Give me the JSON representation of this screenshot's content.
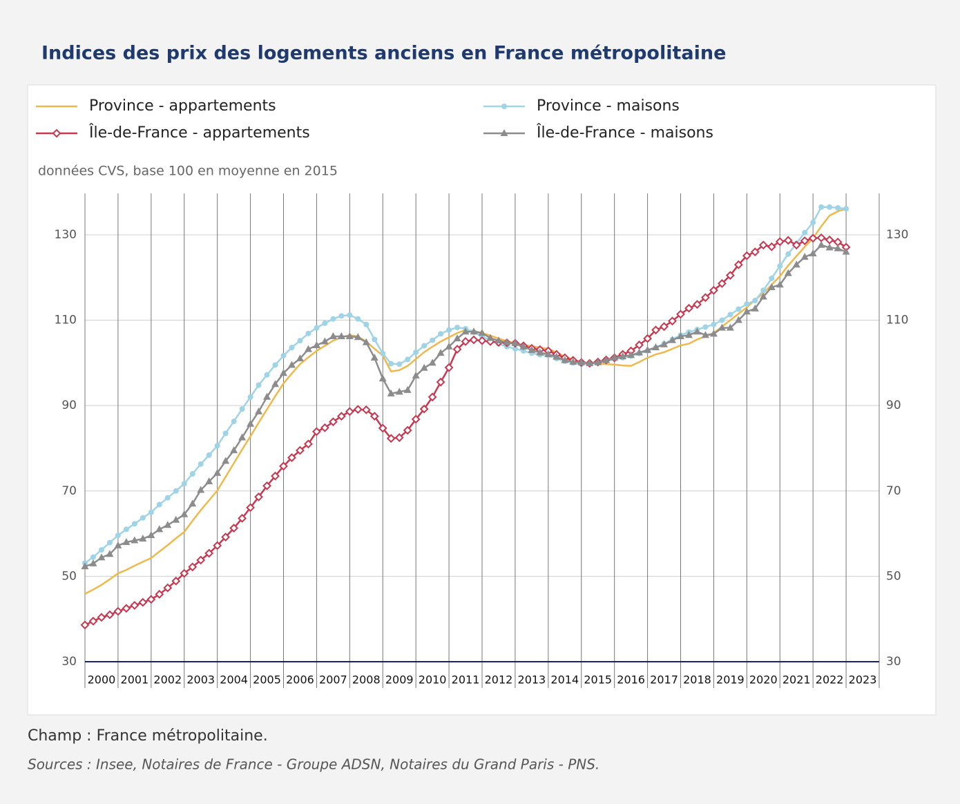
{
  "chart_data": {
    "type": "line",
    "title": "Indices des prix des logements anciens en France métropolitaine",
    "subtitle": "données CVS, base 100 en moyenne en 2015",
    "notes": [
      "Champ : France métropolitaine.",
      "Sources : Insee, Notaires de France - Groupe ADSN, Notaires du Grand Paris - PNS."
    ],
    "legend": "top",
    "grid": true,
    "xlim": [
      2000,
      2024
    ],
    "xticks": [
      2000,
      2001,
      2002,
      2003,
      2004,
      2005,
      2006,
      2007,
      2008,
      2009,
      2010,
      2011,
      2012,
      2013,
      2014,
      2015,
      2016,
      2017,
      2018,
      2019,
      2020,
      2021,
      2022,
      2023
    ],
    "ylim": [
      30,
      139.7
    ],
    "yticks": [
      30,
      50,
      70,
      90,
      110,
      130
    ],
    "y2lim": [
      30,
      139.7
    ],
    "y2ticks": [
      30,
      50,
      70,
      90,
      110,
      130
    ],
    "x": [
      2000,
      2000.25,
      2000.5,
      2000.75,
      2001,
      2001.25,
      2001.5,
      2001.75,
      2002,
      2002.25,
      2002.5,
      2002.75,
      2003,
      2003.25,
      2003.5,
      2003.75,
      2004,
      2004.25,
      2004.5,
      2004.75,
      2005,
      2005.25,
      2005.5,
      2005.75,
      2006,
      2006.25,
      2006.5,
      2006.75,
      2007,
      2007.25,
      2007.5,
      2007.75,
      2008,
      2008.25,
      2008.5,
      2008.75,
      2009,
      2009.25,
      2009.5,
      2009.75,
      2010,
      2010.25,
      2010.5,
      2010.75,
      2011,
      2011.25,
      2011.5,
      2011.75,
      2012,
      2012.25,
      2012.5,
      2012.75,
      2013,
      2013.25,
      2013.5,
      2013.75,
      2014,
      2014.25,
      2014.5,
      2014.75,
      2015,
      2015.25,
      2015.5,
      2015.75,
      2016,
      2016.25,
      2016.5,
      2016.75,
      2017,
      2017.25,
      2017.5,
      2017.75,
      2018,
      2018.25,
      2018.5,
      2018.75,
      2019,
      2019.25,
      2019.5,
      2019.75,
      2020,
      2020.25,
      2020.5,
      2020.75,
      2021,
      2021.25,
      2021.5,
      2021.75,
      2022,
      2022.25,
      2022.5,
      2022.75,
      2023
    ],
    "series": [
      {
        "name": "Province - appartements",
        "color": "#f0b84a",
        "marker": "none",
        "values": [
          45.9,
          46.9,
          48.0,
          49.3,
          50.7,
          51.5,
          52.5,
          53.4,
          54.3,
          55.8,
          57.3,
          58.9,
          60.4,
          63.0,
          65.5,
          67.8,
          70.1,
          73.3,
          76.5,
          79.7,
          82.8,
          86.0,
          89.1,
          92.2,
          95.2,
          97.5,
          99.7,
          101.3,
          102.8,
          104.0,
          105.2,
          106.0,
          106.5,
          106.2,
          105.0,
          103.3,
          101.7,
          98.0,
          98.3,
          99.3,
          100.9,
          102.5,
          103.8,
          105.0,
          106.0,
          107.0,
          107.7,
          107.5,
          107.0,
          106.4,
          105.7,
          105.1,
          104.6,
          104.2,
          103.9,
          103.6,
          103.3,
          102.4,
          101.5,
          100.8,
          100.2,
          100.0,
          99.8,
          99.7,
          99.6,
          99.4,
          99.3,
          100.2,
          101.2,
          102.0,
          102.5,
          103.3,
          104.1,
          104.5,
          105.5,
          106.2,
          107.0,
          108.5,
          110.0,
          111.5,
          113.0,
          114.8,
          116.3,
          118.3,
          120.3,
          122.8,
          125.0,
          127.2,
          129.2,
          132.0,
          134.5,
          135.5,
          136.1
        ]
      },
      {
        "name": "Province - maisons",
        "color": "#9fd3e6",
        "marker": "circle",
        "values": [
          53.1,
          54.5,
          56.2,
          57.9,
          59.6,
          61.0,
          62.3,
          63.7,
          65.0,
          66.8,
          68.4,
          70.0,
          71.7,
          74.0,
          76.3,
          78.4,
          80.6,
          83.5,
          86.3,
          89.2,
          92.0,
          94.8,
          97.2,
          99.5,
          101.7,
          103.6,
          105.2,
          106.9,
          108.2,
          109.3,
          110.3,
          111.0,
          111.2,
          110.3,
          109.0,
          105.5,
          102.2,
          99.8,
          99.7,
          100.8,
          102.5,
          104.0,
          105.3,
          106.8,
          107.7,
          108.3,
          108.0,
          107.2,
          106.2,
          105.3,
          104.5,
          103.8,
          103.3,
          102.8,
          102.3,
          101.9,
          101.7,
          101.0,
          100.4,
          100.0,
          99.7,
          99.8,
          100.0,
          100.4,
          100.9,
          101.2,
          101.6,
          102.2,
          102.8,
          103.6,
          104.5,
          105.5,
          106.5,
          107.2,
          107.8,
          108.4,
          109.0,
          110.0,
          111.3,
          112.6,
          113.8,
          114.6,
          117.0,
          119.8,
          122.7,
          125.5,
          128.0,
          130.5,
          132.9,
          136.5,
          136.5,
          136.3,
          136.1
        ]
      },
      {
        "name": "Île-de-France - appartements",
        "color": "#c8374f",
        "marker": "diamond",
        "values": [
          38.6,
          39.5,
          40.4,
          41.0,
          41.8,
          42.5,
          43.2,
          43.9,
          44.6,
          45.8,
          47.3,
          48.9,
          50.7,
          52.2,
          53.8,
          55.4,
          57.2,
          59.2,
          61.3,
          63.6,
          66.1,
          68.6,
          71.2,
          73.5,
          75.8,
          77.8,
          79.5,
          81.0,
          83.9,
          84.8,
          86.2,
          87.5,
          88.6,
          89.1,
          89.0,
          87.5,
          84.7,
          82.3,
          82.5,
          84.2,
          86.8,
          89.2,
          92.0,
          95.5,
          98.9,
          103.2,
          105.0,
          105.4,
          105.2,
          105.0,
          104.8,
          104.7,
          104.6,
          104.0,
          103.4,
          103.1,
          102.8,
          102.0,
          101.2,
          100.6,
          100.1,
          99.9,
          100.2,
          100.7,
          101.2,
          102.0,
          102.8,
          104.2,
          105.7,
          107.7,
          108.5,
          109.8,
          111.4,
          112.8,
          113.7,
          115.3,
          117.0,
          118.6,
          120.5,
          123.0,
          125.1,
          126.0,
          127.6,
          127.2,
          128.4,
          128.7,
          127.6,
          128.6,
          129.2,
          129.3,
          128.8,
          128.3,
          127.1
        ]
      },
      {
        "name": "Île-de-France - maisons",
        "color": "#8c8c8c",
        "marker": "triangle",
        "values": [
          52.3,
          53.0,
          54.4,
          55.2,
          57.2,
          58.0,
          58.4,
          58.8,
          59.6,
          61.0,
          62.0,
          63.2,
          64.5,
          67.0,
          70.2,
          72.2,
          74.2,
          77.0,
          79.5,
          82.5,
          85.7,
          88.6,
          92.0,
          95.0,
          97.6,
          99.5,
          101.0,
          103.2,
          104.1,
          105.0,
          106.2,
          106.2,
          106.2,
          106.0,
          104.8,
          101.2,
          96.3,
          92.8,
          93.2,
          93.6,
          97.0,
          98.8,
          100.0,
          102.3,
          103.8,
          105.7,
          107.3,
          107.3,
          107.0,
          105.8,
          105.2,
          104.8,
          104.6,
          103.8,
          103.0,
          102.4,
          102.0,
          101.4,
          100.6,
          100.2,
          100.1,
          99.9,
          100.1,
          100.6,
          101.2,
          101.5,
          101.8,
          102.4,
          103.0,
          103.6,
          104.3,
          105.3,
          106.2,
          106.5,
          107.3,
          106.5,
          106.8,
          108.2,
          108.2,
          110.0,
          112.0,
          112.7,
          115.5,
          117.7,
          118.3,
          121.0,
          123.0,
          124.8,
          125.6,
          127.6,
          127.0,
          126.8,
          126.0
        ]
      }
    ]
  }
}
